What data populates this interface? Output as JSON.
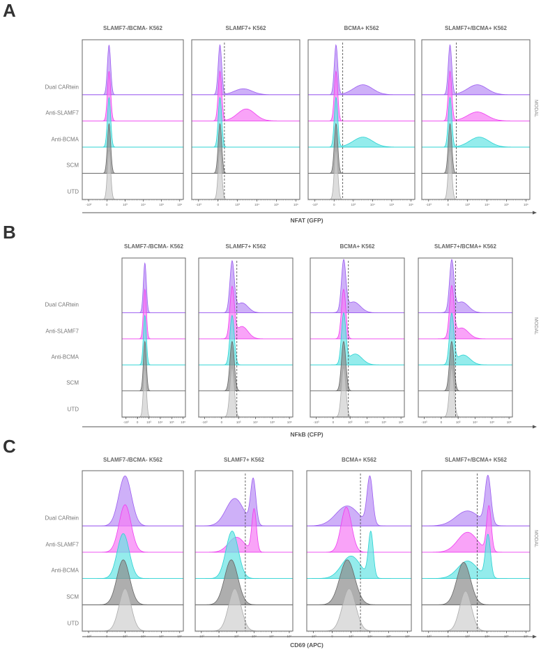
{
  "rows": [
    "Dual CARtein",
    "Anti-SLAMF7",
    "Anti-BCMA",
    "SCM",
    "UTD"
  ],
  "row_colors": {
    "Dual CARtein": {
      "stroke": "#9b5cf0",
      "fill": "#b98ff5"
    },
    "Anti-SLAMF7": {
      "stroke": "#ee3cf0",
      "fill": "#f77cf5"
    },
    "Anti-BCMA": {
      "stroke": "#28d2d2",
      "fill": "#66e4e4"
    },
    "SCM": {
      "stroke": "#666666",
      "fill": "#8c8c8c"
    },
    "UTD": {
      "stroke": "#aaaaaa",
      "fill": "#cfcfcf"
    }
  },
  "y_axis_label": "MODAL",
  "tick_labels": [
    "-10³",
    "0",
    "10³",
    "10⁴",
    "10⁵",
    "10⁶"
  ],
  "chart_data": [
    {
      "type": "histogram-overlay",
      "panel": "A",
      "xlabel": "NFAT (GFP)",
      "ylabel": "MODAL",
      "xlim": [
        -1.35,
        4.2
      ],
      "columns": [
        {
          "title": "SLAMF7-/BCMA- K562",
          "threshold": null,
          "rows": [
            [
              [
                0.12,
                0.09,
                1
              ]
            ],
            [
              [
                0.12,
                0.09,
                1
              ]
            ],
            [
              [
                0.12,
                0.09,
                1
              ]
            ],
            [
              [
                0.12,
                0.09,
                1
              ]
            ],
            [
              [
                0.12,
                0.09,
                1
              ]
            ]
          ]
        },
        {
          "title": "SLAMF7+ K562",
          "threshold": 0.33,
          "rows": [
            [
              [
                0.1,
                0.09,
                1
              ],
              [
                1.3,
                0.45,
                0.12
              ]
            ],
            [
              [
                0.1,
                0.09,
                1
              ],
              [
                1.45,
                0.45,
                0.24
              ]
            ],
            [
              [
                0.1,
                0.09,
                1
              ]
            ],
            [
              [
                0.1,
                0.09,
                1
              ]
            ],
            [
              [
                0.1,
                0.09,
                1
              ]
            ]
          ]
        },
        {
          "title": "BCMA+ K562",
          "threshold": 0.45,
          "rows": [
            [
              [
                0.1,
                0.09,
                1
              ],
              [
                1.5,
                0.5,
                0.2
              ]
            ],
            [
              [
                0.1,
                0.09,
                1
              ]
            ],
            [
              [
                0.1,
                0.09,
                1
              ],
              [
                1.5,
                0.5,
                0.2
              ]
            ],
            [
              [
                0.1,
                0.09,
                1
              ]
            ],
            [
              [
                0.1,
                0.09,
                1
              ]
            ]
          ]
        },
        {
          "title": "SLAMF7+/BCMA+ K562",
          "threshold": 0.42,
          "rows": [
            [
              [
                0.1,
                0.09,
                1
              ],
              [
                1.5,
                0.5,
                0.2
              ]
            ],
            [
              [
                0.1,
                0.09,
                1
              ],
              [
                1.5,
                0.5,
                0.18
              ]
            ],
            [
              [
                0.1,
                0.09,
                1
              ],
              [
                1.6,
                0.5,
                0.2
              ]
            ],
            [
              [
                0.1,
                0.09,
                1
              ]
            ],
            [
              [
                0.1,
                0.09,
                1
              ]
            ]
          ]
        }
      ]
    },
    {
      "type": "histogram-overlay",
      "panel": "B",
      "xlabel": "NFkB (CFP)",
      "ylabel": "MODAL",
      "xlim": [
        -1.35,
        4.2
      ],
      "columns": [
        {
          "title": "SLAMF7-/BCMA- K562",
          "threshold": null,
          "rows": [
            [
              [
                0.65,
                0.13,
                1
              ]
            ],
            [
              [
                0.65,
                0.13,
                1
              ]
            ],
            [
              [
                0.65,
                0.13,
                1
              ]
            ],
            [
              [
                0.65,
                0.13,
                1
              ]
            ],
            [
              [
                0.65,
                0.13,
                1
              ]
            ]
          ]
        },
        {
          "title": "SLAMF7+ K562",
          "threshold": 0.9,
          "rows": [
            [
              [
                0.62,
                0.13,
                1
              ],
              [
                1.2,
                0.35,
                0.2
              ]
            ],
            [
              [
                0.62,
                0.13,
                1
              ],
              [
                1.2,
                0.35,
                0.25
              ]
            ],
            [
              [
                0.62,
                0.13,
                1
              ]
            ],
            [
              [
                0.62,
                0.13,
                1
              ]
            ],
            [
              [
                0.62,
                0.13,
                1
              ]
            ]
          ]
        },
        {
          "title": "BCMA+ K562",
          "threshold": 0.9,
          "rows": [
            [
              [
                0.62,
                0.13,
                1
              ],
              [
                1.2,
                0.4,
                0.22
              ]
            ],
            [
              [
                0.62,
                0.13,
                1
              ]
            ],
            [
              [
                0.62,
                0.13,
                1
              ],
              [
                1.3,
                0.4,
                0.22
              ]
            ],
            [
              [
                0.62,
                0.13,
                1
              ]
            ],
            [
              [
                0.62,
                0.13,
                1
              ]
            ]
          ]
        },
        {
          "title": "SLAMF7+/BCMA+ K562",
          "threshold": 0.85,
          "rows": [
            [
              [
                0.62,
                0.13,
                1
              ],
              [
                1.2,
                0.4,
                0.22
              ]
            ],
            [
              [
                0.62,
                0.13,
                1
              ],
              [
                1.2,
                0.4,
                0.22
              ]
            ],
            [
              [
                0.62,
                0.13,
                1
              ],
              [
                1.3,
                0.4,
                0.2
              ]
            ],
            [
              [
                0.62,
                0.13,
                1
              ]
            ],
            [
              [
                0.62,
                0.13,
                1
              ]
            ]
          ]
        }
      ]
    },
    {
      "type": "histogram-overlay",
      "panel": "C",
      "xlabel": "CD69 (APC)",
      "ylabel": "MODAL",
      "xlim": [
        -1.35,
        4.2
      ],
      "columns": [
        {
          "title": "SLAMF7-/BCMA- K562",
          "threshold": null,
          "rows": [
            [
              [
                1.0,
                0.35,
                1
              ]
            ],
            [
              [
                1.0,
                0.33,
                0.95
              ]
            ],
            [
              [
                0.9,
                0.33,
                0.9
              ]
            ],
            [
              [
                0.9,
                0.35,
                0.9
              ]
            ],
            [
              [
                1.0,
                0.33,
                0.85
              ]
            ]
          ]
        },
        {
          "title": "SLAMF7+ K562",
          "threshold": 1.5,
          "rows": [
            [
              [
                0.9,
                0.5,
                0.55
              ],
              [
                1.95,
                0.15,
                0.9
              ]
            ],
            [
              [
                1.0,
                0.45,
                0.3
              ],
              [
                2.0,
                0.13,
                0.85
              ]
            ],
            [
              [
                0.75,
                0.35,
                0.95
              ]
            ],
            [
              [
                0.7,
                0.38,
                0.9
              ]
            ],
            [
              [
                0.9,
                0.35,
                0.85
              ]
            ]
          ]
        },
        {
          "title": "BCMA+ K562",
          "threshold": 1.5,
          "rows": [
            [
              [
                0.8,
                0.6,
                0.4
              ],
              [
                2.0,
                0.15,
                0.95
              ]
            ],
            [
              [
                0.75,
                0.28,
                0.9
              ]
            ],
            [
              [
                1.0,
                0.5,
                0.45
              ],
              [
                2.05,
                0.13,
                0.9
              ]
            ],
            [
              [
                0.8,
                0.4,
                0.9
              ]
            ],
            [
              [
                0.9,
                0.35,
                0.85
              ]
            ]
          ]
        },
        {
          "title": "SLAMF7+/BCMA+ K562",
          "threshold": 1.5,
          "rows": [
            [
              [
                1.0,
                0.6,
                0.3
              ],
              [
                2.05,
                0.15,
                0.95
              ]
            ],
            [
              [
                1.0,
                0.5,
                0.4
              ],
              [
                2.1,
                0.12,
                0.9
              ]
            ],
            [
              [
                1.0,
                0.5,
                0.35
              ],
              [
                2.05,
                0.13,
                0.85
              ]
            ],
            [
              [
                0.8,
                0.35,
                0.85
              ]
            ],
            [
              [
                0.9,
                0.3,
                0.8
              ]
            ]
          ]
        }
      ]
    }
  ]
}
